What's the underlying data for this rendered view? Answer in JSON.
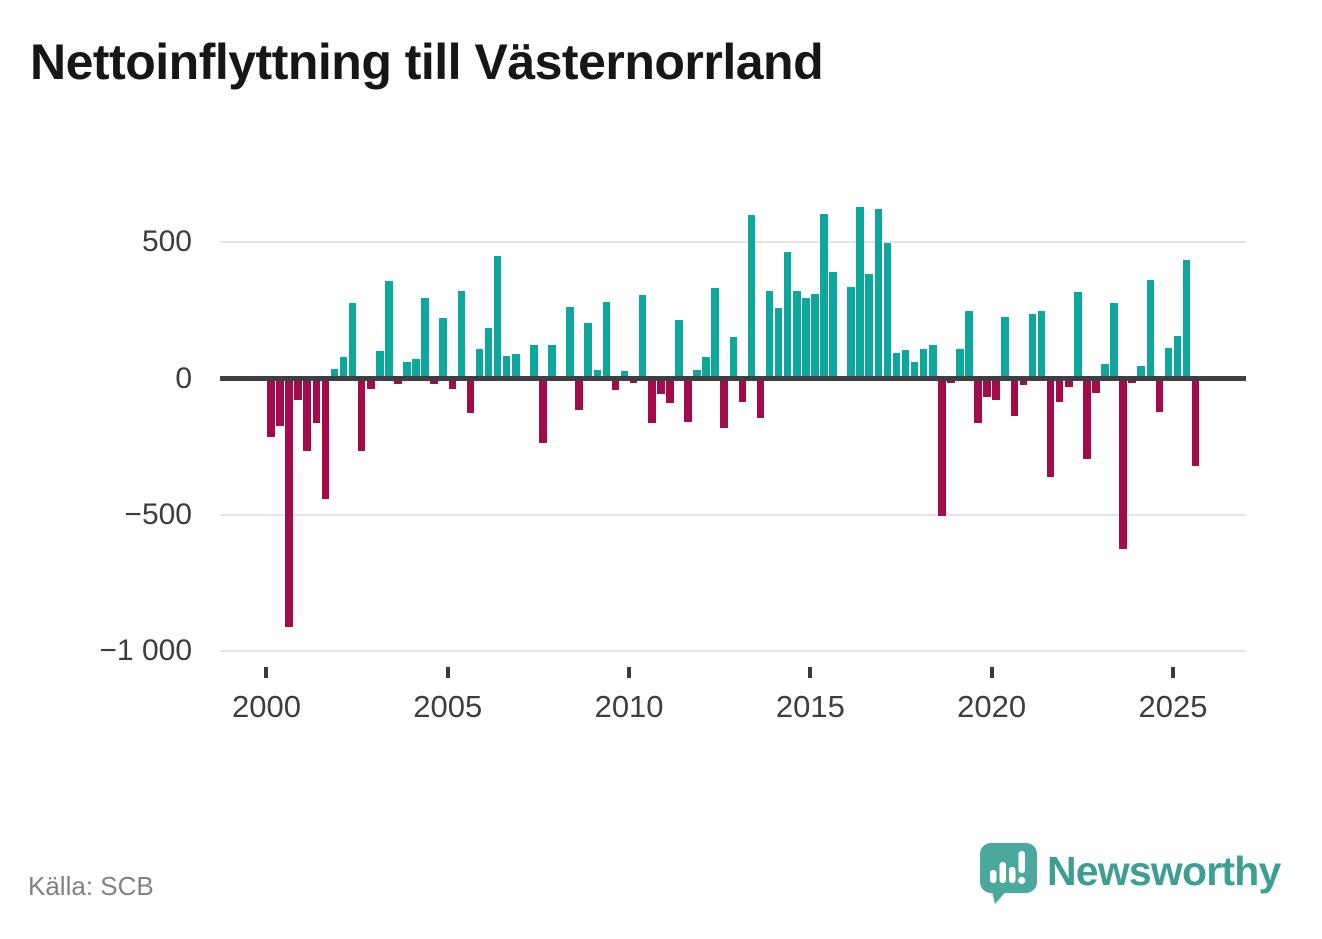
{
  "header": {
    "title": "Nettoinflyttning till Västernorrland"
  },
  "y_axis": {
    "labels": [
      {
        "value": 500,
        "label": "500"
      },
      {
        "value": 0,
        "label": "0"
      },
      {
        "value": -500,
        "label": "−500"
      },
      {
        "value": -1000,
        "label": "−1 000"
      }
    ]
  },
  "x_axis": {
    "ticks": [
      {
        "year": 2000,
        "label": "2000"
      },
      {
        "year": 2005,
        "label": "2005"
      },
      {
        "year": 2010,
        "label": "2010"
      },
      {
        "year": 2015,
        "label": "2015"
      },
      {
        "year": 2020,
        "label": "2020"
      },
      {
        "year": 2025,
        "label": "2025"
      }
    ]
  },
  "chart_data": {
    "type": "bar",
    "title": "Nettoinflyttning till Västernorrland",
    "ylabel": "",
    "xlabel": "",
    "ylim": [
      -1000,
      700
    ],
    "gridlines": [
      500,
      -500,
      -1000
    ],
    "legend": "none",
    "positive_color": "#0ea79e",
    "negative_color": "#a30b4b",
    "periods": [
      "2000K1",
      "2000K2",
      "2000K3",
      "2000K4",
      "2001K1",
      "2001K2",
      "2001K3",
      "2001K4",
      "2002K1",
      "2002K2",
      "2002K3",
      "2002K4",
      "2003K1",
      "2003K2",
      "2003K3",
      "2003K4",
      "2004K1",
      "2004K2",
      "2004K3",
      "2004K4",
      "2005K1",
      "2005K2",
      "2005K3",
      "2005K4",
      "2006K1",
      "2006K2",
      "2006K3",
      "2006K4",
      "2007K1",
      "2007K2",
      "2007K3",
      "2007K4",
      "2008K1",
      "2008K2",
      "2008K3",
      "2008K4",
      "2009K1",
      "2009K2",
      "2009K3",
      "2009K4",
      "2010K1",
      "2010K2",
      "2010K3",
      "2010K4",
      "2011K1",
      "2011K2",
      "2011K3",
      "2011K4",
      "2012K1",
      "2012K2",
      "2012K3",
      "2012K4",
      "2013K1",
      "2013K2",
      "2013K3",
      "2013K4",
      "2014K1",
      "2014K2",
      "2014K3",
      "2014K4",
      "2015K1",
      "2015K2",
      "2015K3",
      "2015K4",
      "2016K1",
      "2016K2",
      "2016K3",
      "2016K4",
      "2017K1",
      "2017K2",
      "2017K3",
      "2017K4",
      "2018K1",
      "2018K2",
      "2018K3",
      "2018K4",
      "2019K1",
      "2019K2",
      "2019K3",
      "2019K4",
      "2020K1",
      "2020K2",
      "2020K3",
      "2020K4",
      "2021K1",
      "2021K2",
      "2021K3",
      "2021K4",
      "2022K1",
      "2022K2",
      "2022K3",
      "2022K4",
      "2023K1",
      "2023K2",
      "2023K3",
      "2023K4",
      "2024K1",
      "2024K2",
      "2024K3",
      "2024K4",
      "2025K1",
      "2025K2",
      "2025K3"
    ],
    "values": [
      -216,
      -175,
      -913,
      -79,
      -265,
      -162,
      -442,
      34,
      79,
      277,
      -265,
      -40,
      101,
      357,
      -20,
      62,
      73,
      297,
      -22,
      222,
      -40,
      323,
      -126,
      107,
      184,
      451,
      82,
      89,
      2,
      122,
      -238,
      123,
      2,
      262,
      -115,
      203,
      30,
      280,
      -42,
      28,
      -18,
      306,
      -164,
      -58,
      -90,
      215,
      -158,
      31,
      78,
      331,
      -182,
      152,
      -88,
      601,
      -144,
      322,
      260,
      464,
      321,
      297,
      311,
      605,
      391,
      2,
      336,
      630,
      382,
      623,
      499,
      94,
      103,
      62,
      110,
      122,
      -505,
      -18,
      108,
      246,
      -165,
      -67,
      -78,
      227,
      -138,
      -24,
      236,
      248,
      -362,
      -88,
      -33,
      319,
      -297,
      -55,
      55,
      276,
      -626,
      -18,
      47,
      362,
      -123,
      113,
      156,
      436,
      -320
    ]
  },
  "footer": {
    "source": "Källa: SCB",
    "brand": "Newsworthy"
  }
}
